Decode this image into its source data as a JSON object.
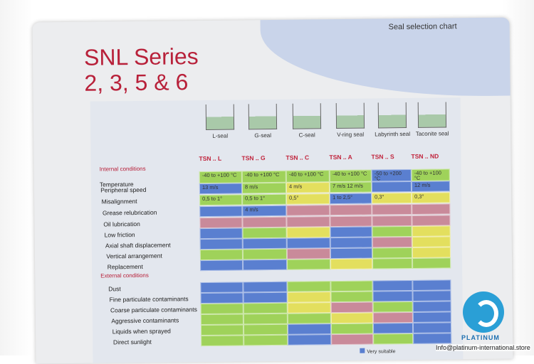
{
  "header": {
    "chart_title": "Seal selection chart",
    "series_line1": "SNL Series",
    "series_line2": "2, 3, 5 & 6"
  },
  "seals": [
    "L-seal",
    "G-seal",
    "C-seal",
    "V-ring seal",
    "Labyrinth seal",
    "Taconite seal"
  ],
  "columns": [
    "TSN .. L",
    "TSN .. G",
    "TSN .. C",
    "TSN .. A",
    "TSN .. S",
    "TSN .. ND"
  ],
  "internal_heading": "Internal conditions",
  "external_heading": "External conditions",
  "rows": [
    {
      "label": "Temperature",
      "cells": [
        "-40 to +100 °C",
        "-40 to +100 °C",
        "-40 to +100 °C",
        "-40 to +100 °C",
        "-50 to +200 °C",
        "-40 to +100 °C"
      ],
      "colors": [
        "g",
        "g",
        "g",
        "g",
        "b",
        "g"
      ]
    },
    {
      "label": "Peripheral speed",
      "cells": [
        "13 m/s",
        "8 m/s",
        "4 m/s",
        "7 m/s   12 m/s",
        "",
        "12 m/s"
      ],
      "colors": [
        "b",
        "g",
        "y",
        "g",
        "b",
        "b"
      ]
    },
    {
      "label": "Misalignment",
      "cells": [
        "0,5 to 1°",
        "0,5 to 1°",
        "0,5°",
        "1 to 2,5°",
        "0,3°",
        "0,3°"
      ],
      "colors": [
        "g",
        "g",
        "y",
        "b",
        "y",
        "y"
      ]
    },
    {
      "label": "Grease relubrication",
      "cells": [
        "",
        "4 m/s",
        "",
        "",
        "",
        ""
      ],
      "colors": [
        "b",
        "b",
        "r",
        "r",
        "r",
        "r"
      ]
    },
    {
      "label": "Oil lubrication",
      "cells": [
        "",
        "",
        "",
        "",
        "",
        ""
      ],
      "colors": [
        "r",
        "r",
        "r",
        "r",
        "r",
        "r"
      ]
    },
    {
      "label": "Low friction",
      "cells": [
        "",
        "",
        "",
        "",
        "",
        ""
      ],
      "colors": [
        "b",
        "g",
        "y",
        "b",
        "g",
        "y"
      ]
    },
    {
      "label": "Axial shaft displacement",
      "cells": [
        "",
        "",
        "",
        "",
        "",
        ""
      ],
      "colors": [
        "b",
        "b",
        "b",
        "b",
        "r",
        "y"
      ]
    },
    {
      "label": "Vertical arrangement",
      "cells": [
        "",
        "",
        "",
        "",
        "",
        ""
      ],
      "colors": [
        "g",
        "g",
        "r",
        "b",
        "g",
        "y"
      ]
    },
    {
      "label": "Replacement",
      "cells": [
        "",
        "",
        "",
        "",
        "",
        ""
      ],
      "colors": [
        "b",
        "b",
        "g",
        "y",
        "g",
        "g"
      ]
    },
    {
      "label": "Dust",
      "cells": [
        "",
        "",
        "",
        "",
        "",
        ""
      ],
      "colors": [
        "b",
        "b",
        "g",
        "g",
        "b",
        "b"
      ]
    },
    {
      "label": "Fine particulate contaminants",
      "cells": [
        "",
        "",
        "",
        "",
        "",
        ""
      ],
      "colors": [
        "b",
        "b",
        "y",
        "g",
        "b",
        "b"
      ]
    },
    {
      "label": "Coarse particulate contaminants",
      "cells": [
        "",
        "",
        "",
        "",
        "",
        ""
      ],
      "colors": [
        "g",
        "g",
        "y",
        "r",
        "g",
        "b"
      ]
    },
    {
      "label": "Aggressive contaminants",
      "cells": [
        "",
        "",
        "",
        "",
        "",
        ""
      ],
      "colors": [
        "g",
        "g",
        "g",
        "y",
        "r",
        "b"
      ]
    },
    {
      "label": "Liquids when sprayed",
      "cells": [
        "",
        "",
        "",
        "",
        "",
        ""
      ],
      "colors": [
        "g",
        "g",
        "b",
        "g",
        "b",
        "b"
      ]
    },
    {
      "label": "Direct sunlight",
      "cells": [
        "",
        "",
        "",
        "",
        "",
        ""
      ],
      "colors": [
        "g",
        "g",
        "b",
        "r",
        "g",
        "b"
      ]
    }
  ],
  "colors": {
    "g": "#9fd25a",
    "b": "#5a7fd0",
    "y": "#e3df5e",
    "r": "#c98a9a"
  },
  "legend": {
    "very_suitable": "Very suitable"
  },
  "watermark": {
    "brand": "PLATINUM",
    "email": "Info@platinum-international.store"
  }
}
